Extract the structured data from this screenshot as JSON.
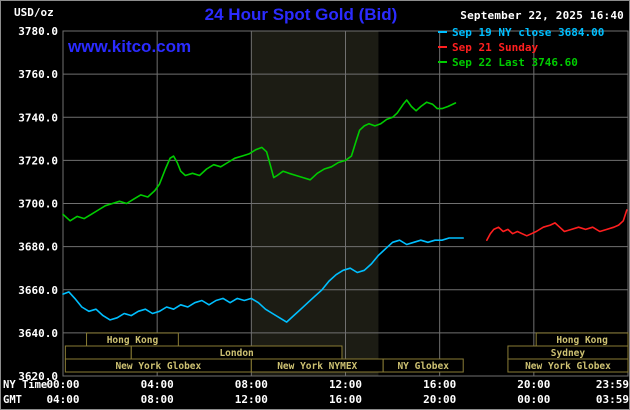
{
  "colors": {
    "background": "#000000",
    "grid": "#707070",
    "text": "#ffffff",
    "accent_blue": "#2b2bff",
    "shading": "#1c1c14",
    "session_text": "#cdc172",
    "session_border": "#8a7d35",
    "session_fill": "#000000"
  },
  "header": {
    "units_label": "USD/oz",
    "title": "24 Hour Spot Gold (Bid)",
    "datetime": "September 22, 2025 16:40",
    "watermark": "www.kitco.com",
    "legend": [
      {
        "label": "Sep 19 NY close 3684.00",
        "color": "#00bfff"
      },
      {
        "label": "Sep 21 Sunday",
        "color": "#ff1f1f"
      },
      {
        "label": "Sep 22 Last 3746.60",
        "color": "#00cc00"
      }
    ]
  },
  "axes": {
    "y_ticks": [
      "3780.0",
      "3760.0",
      "3740.0",
      "3720.0",
      "3700.0",
      "3680.0",
      "3660.0",
      "3640.0",
      "3620.0"
    ],
    "x_rows": [
      {
        "label": "NY Time",
        "ticks": [
          {
            "label": "00:00",
            "hour": 0
          },
          {
            "label": "04:00",
            "hour": 4
          },
          {
            "label": "08:00",
            "hour": 8
          },
          {
            "label": "12:00",
            "hour": 12
          },
          {
            "label": "16:00",
            "hour": 16
          },
          {
            "label": "20:00",
            "hour": 20
          },
          {
            "label": "23:59",
            "hour": 24
          }
        ]
      },
      {
        "label": "GMT",
        "ticks": [
          {
            "label": "04:00",
            "hour": 0
          },
          {
            "label": "08:00",
            "hour": 4
          },
          {
            "label": "12:00",
            "hour": 8
          },
          {
            "label": "16:00",
            "hour": 12
          },
          {
            "label": "20:00",
            "hour": 16
          },
          {
            "label": "00:00",
            "hour": 20
          },
          {
            "label": "03:59",
            "hour": 24
          }
        ]
      }
    ]
  },
  "sessions": {
    "rows": [
      [
        {
          "label": "Hong Kong",
          "start": 1.0,
          "end": 4.9
        },
        {
          "label": "Hong Kong",
          "start": 20.1,
          "end": 24.0
        }
      ],
      [
        {
          "label": "",
          "start": 0.1,
          "end": 2.9
        },
        {
          "label": "London",
          "start": 2.9,
          "end": 11.85
        },
        {
          "label": "Sydney",
          "start": 18.9,
          "end": 24.0
        }
      ],
      [
        {
          "label": "New York Globex",
          "start": 0.1,
          "end": 8.0
        },
        {
          "label": "New York NYMEX",
          "start": 8.0,
          "end": 13.6
        },
        {
          "label": "NY Globex",
          "start": 13.6,
          "end": 17.0
        },
        {
          "label": "New York Globex",
          "start": 18.9,
          "end": 24.0
        }
      ]
    ]
  },
  "chart_data": {
    "type": "line",
    "title": "24 Hour Spot Gold (Bid)",
    "xlabel": "NY Time (hours)",
    "ylabel": "USD/oz",
    "xlim": [
      0,
      24
    ],
    "ylim": [
      3620,
      3780
    ],
    "y_tick_step": 20,
    "grid": true,
    "legend_position": "top-right",
    "shaded_region": {
      "start_hour": 8.0,
      "end_hour": 13.4
    },
    "series": [
      {
        "name": "Sep 19 NY close",
        "close_value": 3684.0,
        "color": "#00bfff",
        "points": [
          [
            0,
            3658
          ],
          [
            0.25,
            3659
          ],
          [
            0.5,
            3656
          ],
          [
            0.8,
            3652
          ],
          [
            1.1,
            3650
          ],
          [
            1.4,
            3651
          ],
          [
            1.7,
            3648
          ],
          [
            2.0,
            3646
          ],
          [
            2.3,
            3647
          ],
          [
            2.6,
            3649
          ],
          [
            2.9,
            3648
          ],
          [
            3.2,
            3650
          ],
          [
            3.5,
            3651
          ],
          [
            3.8,
            3649
          ],
          [
            4.1,
            3650
          ],
          [
            4.4,
            3652
          ],
          [
            4.7,
            3651
          ],
          [
            5.0,
            3653
          ],
          [
            5.3,
            3652
          ],
          [
            5.6,
            3654
          ],
          [
            5.9,
            3655
          ],
          [
            6.2,
            3653
          ],
          [
            6.5,
            3655
          ],
          [
            6.8,
            3656
          ],
          [
            7.1,
            3654
          ],
          [
            7.4,
            3656
          ],
          [
            7.7,
            3655
          ],
          [
            8.0,
            3656
          ],
          [
            8.3,
            3654
          ],
          [
            8.6,
            3651
          ],
          [
            8.9,
            3649
          ],
          [
            9.2,
            3647
          ],
          [
            9.5,
            3645
          ],
          [
            9.8,
            3648
          ],
          [
            10.1,
            3651
          ],
          [
            10.4,
            3654
          ],
          [
            10.7,
            3657
          ],
          [
            11.0,
            3660
          ],
          [
            11.3,
            3664
          ],
          [
            11.6,
            3667
          ],
          [
            11.9,
            3669
          ],
          [
            12.2,
            3670
          ],
          [
            12.5,
            3668
          ],
          [
            12.8,
            3669
          ],
          [
            13.1,
            3672
          ],
          [
            13.4,
            3676
          ],
          [
            13.7,
            3679
          ],
          [
            14.0,
            3682
          ],
          [
            14.3,
            3683
          ],
          [
            14.6,
            3681
          ],
          [
            14.9,
            3682
          ],
          [
            15.2,
            3683
          ],
          [
            15.5,
            3682
          ],
          [
            15.8,
            3683
          ],
          [
            16.1,
            3683
          ],
          [
            16.4,
            3684
          ],
          [
            16.7,
            3684
          ],
          [
            17.0,
            3684
          ]
        ]
      },
      {
        "name": "Sep 21 Sunday",
        "color": "#ff1f1f",
        "points": [
          [
            18.0,
            3683
          ],
          [
            18.15,
            3686
          ],
          [
            18.3,
            3688
          ],
          [
            18.5,
            3689
          ],
          [
            18.7,
            3687
          ],
          [
            18.9,
            3688
          ],
          [
            19.1,
            3686
          ],
          [
            19.3,
            3687
          ],
          [
            19.5,
            3686
          ],
          [
            19.7,
            3685
          ],
          [
            19.9,
            3686
          ],
          [
            20.1,
            3687
          ],
          [
            20.4,
            3689
          ],
          [
            20.7,
            3690
          ],
          [
            20.9,
            3691
          ],
          [
            21.1,
            3689
          ],
          [
            21.3,
            3687
          ],
          [
            21.6,
            3688
          ],
          [
            21.9,
            3689
          ],
          [
            22.2,
            3688
          ],
          [
            22.5,
            3689
          ],
          [
            22.8,
            3687
          ],
          [
            23.1,
            3688
          ],
          [
            23.4,
            3689
          ],
          [
            23.6,
            3690
          ],
          [
            23.8,
            3692
          ],
          [
            23.95,
            3697
          ]
        ]
      },
      {
        "name": "Sep 22 Last",
        "last_value": 3746.6,
        "color": "#00cc00",
        "points": [
          [
            0,
            3695
          ],
          [
            0.3,
            3692
          ],
          [
            0.6,
            3694
          ],
          [
            0.9,
            3693
          ],
          [
            1.2,
            3695
          ],
          [
            1.5,
            3697
          ],
          [
            1.8,
            3699
          ],
          [
            2.1,
            3700
          ],
          [
            2.4,
            3701
          ],
          [
            2.7,
            3700
          ],
          [
            3.0,
            3702
          ],
          [
            3.3,
            3704
          ],
          [
            3.6,
            3703
          ],
          [
            3.9,
            3706
          ],
          [
            4.1,
            3709
          ],
          [
            4.35,
            3716
          ],
          [
            4.55,
            3721
          ],
          [
            4.7,
            3722
          ],
          [
            4.85,
            3719
          ],
          [
            5.0,
            3715
          ],
          [
            5.2,
            3713
          ],
          [
            5.5,
            3714
          ],
          [
            5.8,
            3713
          ],
          [
            6.1,
            3716
          ],
          [
            6.4,
            3718
          ],
          [
            6.7,
            3717
          ],
          [
            7.0,
            3719
          ],
          [
            7.3,
            3721
          ],
          [
            7.6,
            3722
          ],
          [
            7.9,
            3723
          ],
          [
            8.2,
            3725
          ],
          [
            8.45,
            3726
          ],
          [
            8.65,
            3724
          ],
          [
            8.8,
            3718
          ],
          [
            8.95,
            3712
          ],
          [
            9.1,
            3713
          ],
          [
            9.35,
            3715
          ],
          [
            9.6,
            3714
          ],
          [
            9.9,
            3713
          ],
          [
            10.2,
            3712
          ],
          [
            10.5,
            3711
          ],
          [
            10.8,
            3714
          ],
          [
            11.1,
            3716
          ],
          [
            11.4,
            3717
          ],
          [
            11.7,
            3719
          ],
          [
            12.0,
            3720
          ],
          [
            12.25,
            3722
          ],
          [
            12.45,
            3729
          ],
          [
            12.6,
            3734
          ],
          [
            12.8,
            3736
          ],
          [
            13.0,
            3737
          ],
          [
            13.25,
            3736
          ],
          [
            13.5,
            3737
          ],
          [
            13.75,
            3739
          ],
          [
            14.0,
            3740
          ],
          [
            14.2,
            3742
          ],
          [
            14.45,
            3746
          ],
          [
            14.6,
            3748
          ],
          [
            14.8,
            3745
          ],
          [
            15.0,
            3743
          ],
          [
            15.2,
            3745
          ],
          [
            15.45,
            3747
          ],
          [
            15.7,
            3746
          ],
          [
            15.9,
            3744
          ],
          [
            16.1,
            3744
          ],
          [
            16.35,
            3745
          ],
          [
            16.67,
            3746.6
          ]
        ]
      }
    ]
  }
}
